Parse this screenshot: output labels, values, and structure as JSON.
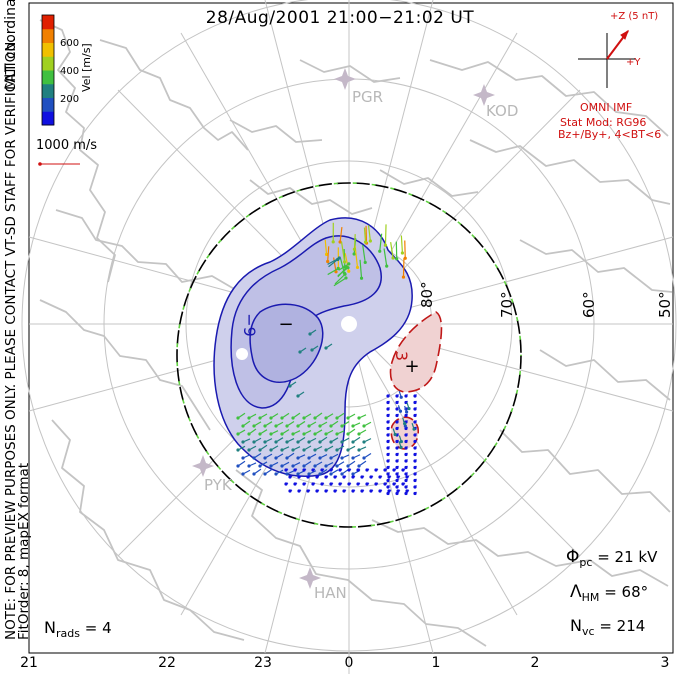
{
  "title": "28/Aug/2001 21:00−21:02 UT",
  "side_labels": {
    "coordinates": "MLT coordinates",
    "preview_note": "NOTE: FOR PREVIEW PURPOSES ONLY. PLEASE CONTACT VT-SD STAFF FOR VERIFICATION.",
    "fit_order": "FitOrder: 8, mapEX format"
  },
  "colorbar": {
    "label": "Vel [m/s]",
    "ticks": [
      "600",
      "400",
      "200"
    ],
    "colors": [
      "#1010e0",
      "#2050c0",
      "#208080",
      "#40c040",
      "#a0d020",
      "#f0c000",
      "#f08000",
      "#e02000"
    ]
  },
  "reference_vector": {
    "label": "1000 m/s",
    "color": "#d01010"
  },
  "imf": {
    "z_label": "+Z (5 nT)",
    "y_label": "+Y",
    "source": "OMNI IMF",
    "stat_mod": "Stat Mod: RG96",
    "conditions": "Bz+/By+, 4<BT<6",
    "color": "#d01010"
  },
  "latitude_labels": [
    "80°",
    "70°",
    "60°",
    "50°"
  ],
  "stations": [
    "PGR",
    "KOD",
    "PYK",
    "HAN"
  ],
  "potential_markers": {
    "minimum": "−",
    "maximum": "+",
    "neg_contour": "−9",
    "pos_contour": "3"
  },
  "mlt_ticks": [
    "21",
    "22",
    "23",
    "0",
    "1",
    "2",
    "3"
  ],
  "stats": {
    "phi_pc_symbol": "Φ",
    "phi_pc_sub": "pc",
    "phi_pc_value": "= 21 kV",
    "lambda_hm_symbol": "Λ",
    "lambda_hm_sub": "HM",
    "lambda_hm_value": "= 68°",
    "n_vc_symbol": "N",
    "n_vc_sub": "vc",
    "n_vc_value": "= 214",
    "n_rads_symbol": "N",
    "n_rads_sub": "rads",
    "n_rads_value": "= 4"
  },
  "colors": {
    "grid": "#bbbbbb",
    "coast": "#c0c0c0",
    "negative_cell": "#1a1ab0",
    "negative_fill": "#cfd0ec",
    "positive_cell": "#c01818",
    "positive_fill": "#f0d2d2",
    "boundary_green": "#60d040"
  }
}
